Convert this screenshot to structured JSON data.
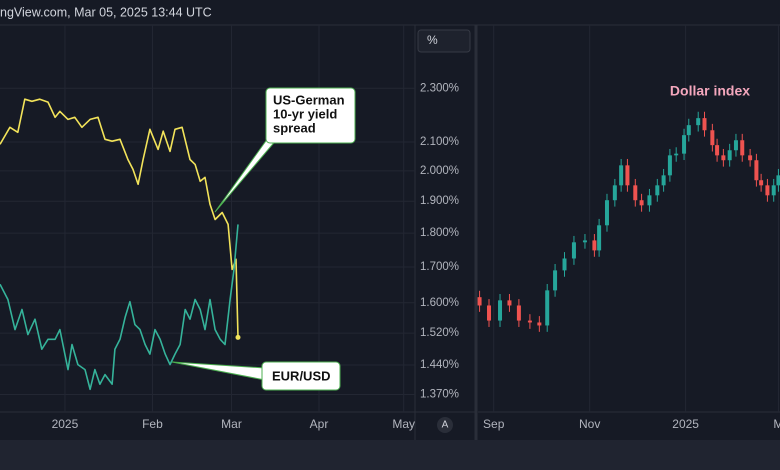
{
  "header": "ngView.com, Mar 05, 2025 13:44 UTC",
  "autoscale_button": "A",
  "chart_data": [
    {
      "type": "line",
      "y_unit_label": "%",
      "log_scale": true,
      "grid": true,
      "xlim": [
        -23,
        124
      ],
      "xticks": [
        {
          "value": 0,
          "label": "2025"
        },
        {
          "value": 31,
          "label": "Feb"
        },
        {
          "value": 59,
          "label": "Mar"
        },
        {
          "value": 90,
          "label": "Apr"
        },
        {
          "value": 120,
          "label": "May"
        }
      ],
      "ylim": [
        1.33,
        2.56
      ],
      "yticks": [
        {
          "value": 2.3,
          "label": "2.300%"
        },
        {
          "value": 2.1,
          "label": "2.100%"
        },
        {
          "value": 2.0,
          "label": "2.000%"
        },
        {
          "value": 1.9,
          "label": "1.900%"
        },
        {
          "value": 1.8,
          "label": "1.800%"
        },
        {
          "value": 1.7,
          "label": "1.700%"
        },
        {
          "value": 1.6,
          "label": "1.600%"
        },
        {
          "value": 1.52,
          "label": "1.520%"
        },
        {
          "value": 1.44,
          "label": "1.440%"
        },
        {
          "value": 1.37,
          "label": "1.370%"
        }
      ],
      "series": [
        {
          "color": "#f2e35a",
          "x": [
            -23,
            -19.5,
            -16.7,
            -14.2,
            -11.7,
            -8.9,
            -6,
            -3.5,
            -1.8,
            1.1,
            3.5,
            6,
            8.9,
            11.7,
            14.2,
            16.7,
            19.5,
            22.3,
            24.1,
            25.9,
            27.7,
            30.1,
            33,
            34.8,
            37.2,
            39,
            41.5,
            44.3,
            46.1,
            47.9,
            49.6,
            51.4,
            53.2,
            55.7,
            57.8,
            59.2,
            60.6,
            61.3
          ],
          "values": [
            2.092,
            2.153,
            2.135,
            2.258,
            2.25,
            2.258,
            2.247,
            2.19,
            2.212,
            2.182,
            2.19,
            2.153,
            2.182,
            2.19,
            2.11,
            2.103,
            2.11,
            2.039,
            2.005,
            1.955,
            2.039,
            2.146,
            2.074,
            2.139,
            2.067,
            2.146,
            2.153,
            2.039,
            2.022,
            1.965,
            1.978,
            1.89,
            1.842,
            1.864,
            1.827,
            1.693,
            1.722,
            1.509
          ]
        },
        {
          "color": "#35b39a",
          "x": [
            -23,
            -20.2,
            -17.7,
            -15.2,
            -13.1,
            -10.6,
            -8.2,
            -6,
            -3.5,
            -1.8,
            1.1,
            2.5,
            4.6,
            7.1,
            8.9,
            10.6,
            12.4,
            14.2,
            16.7,
            17.7,
            19.5,
            21.3,
            23,
            24.8,
            26.6,
            28.4,
            30.1,
            31.9,
            33.7,
            35.5,
            37.2,
            39,
            40.8,
            42.6,
            44.3,
            46.1,
            47.9,
            49.6,
            51.4,
            53.2,
            55,
            56.7,
            58.5,
            59.9,
            61.3
          ],
          "values": [
            1.651,
            1.609,
            1.529,
            1.582,
            1.516,
            1.556,
            1.479,
            1.504,
            1.504,
            1.529,
            1.429,
            1.491,
            1.441,
            1.429,
            1.382,
            1.429,
            1.394,
            1.417,
            1.394,
            1.479,
            1.504,
            1.561,
            1.603,
            1.542,
            1.529,
            1.491,
            1.467,
            1.529,
            1.504,
            1.467,
            1.441,
            1.467,
            1.491,
            1.582,
            1.556,
            1.609,
            1.582,
            1.529,
            1.609,
            1.529,
            1.504,
            1.491,
            1.609,
            1.693,
            1.827
          ]
        }
      ],
      "annotations": [
        {
          "lines": [
            "US-German",
            "10-yr yield",
            "spread"
          ]
        },
        {
          "lines": [
            "EUR/USD"
          ]
        }
      ]
    },
    {
      "type": "candlestick",
      "title": "Dollar index",
      "title_color": "#f4a7bd",
      "up_color": "#26a69a",
      "down_color": "#ef5350",
      "grid": true,
      "xlim": [
        -132,
        60
      ],
      "xticks": [
        {
          "value": -122,
          "label": "Sep"
        },
        {
          "value": -61,
          "label": "Nov"
        },
        {
          "value": 0,
          "label": "2025"
        },
        {
          "value": 59,
          "label": "M"
        }
      ],
      "ylim": [
        95.9,
        114.1
      ],
      "x": [
        -131,
        -125,
        -118,
        -112,
        -106,
        -99,
        -93,
        -88,
        -83,
        -77,
        -71,
        -64,
        -58,
        -55,
        -50,
        -45,
        -41,
        -37,
        -32,
        -28,
        -23,
        -18,
        -14,
        -10,
        -6,
        -1,
        2,
        8,
        12,
        17,
        20,
        24,
        28,
        32,
        36,
        41,
        45,
        48,
        52,
        56,
        59
      ],
      "open": [
        101.3,
        100.91,
        100.2,
        101.15,
        100.91,
        100.2,
        100.11,
        99.97,
        101.62,
        102.56,
        103.12,
        103.88,
        103.97,
        103.5,
        104.68,
        105.86,
        106.56,
        107.5,
        106.56,
        105.86,
        105.62,
        106.09,
        106.56,
        107.03,
        107.97,
        108.05,
        108.92,
        109.39,
        109.72,
        109.15,
        108.45,
        107.97,
        107.74,
        108.21,
        108.68,
        107.97,
        107.74,
        106.8,
        106.56,
        106.09,
        106.56
      ],
      "high": [
        101.6,
        101.21,
        101.45,
        101.45,
        101.21,
        100.5,
        100.41,
        101.92,
        102.86,
        103.42,
        104.18,
        104.27,
        104.27,
        104.98,
        106.16,
        106.86,
        107.8,
        107.8,
        106.86,
        106.16,
        106.39,
        106.86,
        107.33,
        108.27,
        108.35,
        109.22,
        109.69,
        110.02,
        110.02,
        109.45,
        108.75,
        108.27,
        108.51,
        108.98,
        108.98,
        108.27,
        108.04,
        107.1,
        106.86,
        106.86,
        107.33
      ],
      "low": [
        100.61,
        99.9,
        99.9,
        100.61,
        99.9,
        99.81,
        99.67,
        99.67,
        101.32,
        102.26,
        102.82,
        103.58,
        103.2,
        103.2,
        104.38,
        105.56,
        106.26,
        106.26,
        105.56,
        105.32,
        105.32,
        105.79,
        106.26,
        106.73,
        107.67,
        107.75,
        108.62,
        109.09,
        108.85,
        108.15,
        107.67,
        107.44,
        107.44,
        107.91,
        107.67,
        107.44,
        106.5,
        106.26,
        105.79,
        105.79,
        106.26
      ],
      "close": [
        100.91,
        100.2,
        101.15,
        100.91,
        100.2,
        100.11,
        99.97,
        101.62,
        102.56,
        103.12,
        103.88,
        103.97,
        103.5,
        104.68,
        105.86,
        106.56,
        107.5,
        106.56,
        105.86,
        105.62,
        106.09,
        106.56,
        107.03,
        107.97,
        108.05,
        108.92,
        109.39,
        109.72,
        109.15,
        108.45,
        107.97,
        107.74,
        108.21,
        108.68,
        107.97,
        107.74,
        106.8,
        106.56,
        106.09,
        106.56,
        107.03
      ]
    }
  ]
}
